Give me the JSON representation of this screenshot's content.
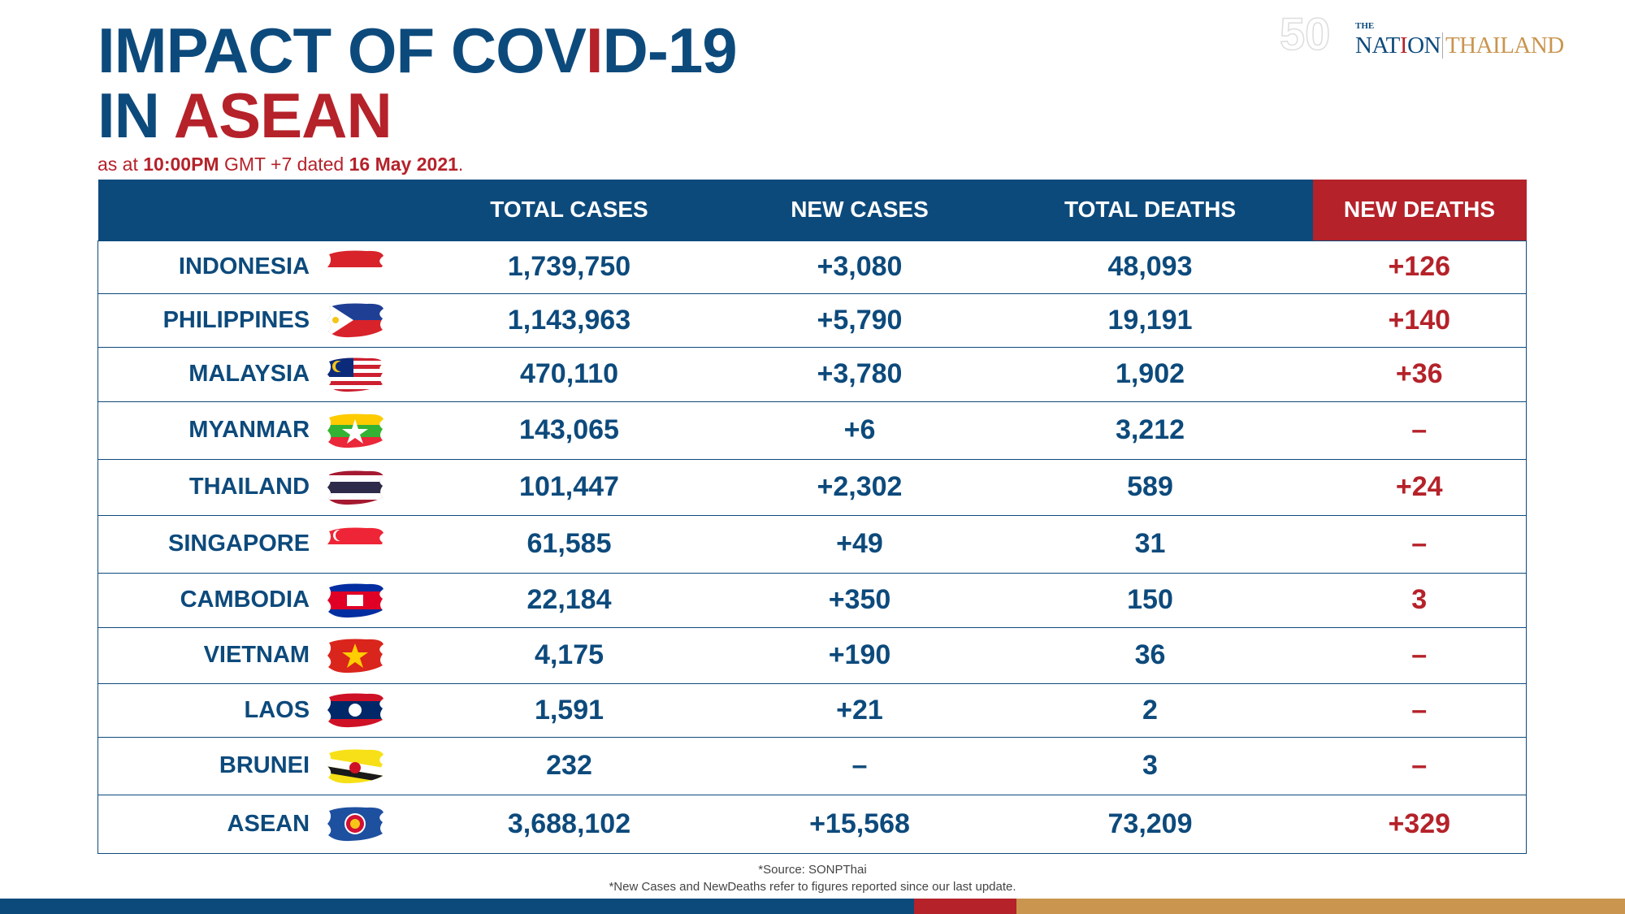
{
  "title": {
    "line1_a": "IMPACT OF COV",
    "line1_b": "I",
    "line1_c": "D-19",
    "line2_a": "IN ",
    "line2_b": "ASEAN"
  },
  "subtitle": {
    "a": "as at ",
    "time": "10:00PM",
    "b": " GMT +7 dated ",
    "date": "16 May 2021",
    "c": "."
  },
  "logo": {
    "the": "THE",
    "nation_a": "NAT",
    "nation_b": "I",
    "nation_c": "ON",
    "thailand": "THAILAND",
    "anniversary": "50"
  },
  "table": {
    "headers": [
      "",
      "TOTAL CASES",
      "NEW CASES",
      "TOTAL DEATHS",
      "NEW DEATHS"
    ],
    "rows": [
      {
        "country": "INDONESIA",
        "flag": "indonesia",
        "total_cases": "1,739,750",
        "new_cases": "+3,080",
        "total_deaths": "48,093",
        "new_deaths": "+126"
      },
      {
        "country": "PHILIPPINES",
        "flag": "philippines",
        "total_cases": "1,143,963",
        "new_cases": "+5,790",
        "total_deaths": "19,191",
        "new_deaths": "+140"
      },
      {
        "country": "MALAYSIA",
        "flag": "malaysia",
        "total_cases": "470,110",
        "new_cases": "+3,780",
        "total_deaths": "1,902",
        "new_deaths": "+36"
      },
      {
        "country": "MYANMAR",
        "flag": "myanmar",
        "total_cases": "143,065",
        "new_cases": "+6",
        "total_deaths": "3,212",
        "new_deaths": "–"
      },
      {
        "country": "THAILAND",
        "flag": "thailand",
        "total_cases": "101,447",
        "new_cases": "+2,302",
        "total_deaths": "589",
        "new_deaths": "+24"
      },
      {
        "country": "SINGAPORE",
        "flag": "singapore",
        "total_cases": "61,585",
        "new_cases": "+49",
        "total_deaths": "31",
        "new_deaths": "–"
      },
      {
        "country": "CAMBODIA",
        "flag": "cambodia",
        "total_cases": "22,184",
        "new_cases": "+350",
        "total_deaths": "150",
        "new_deaths": "3"
      },
      {
        "country": "VIETNAM",
        "flag": "vietnam",
        "total_cases": "4,175",
        "new_cases": "+190",
        "total_deaths": "36",
        "new_deaths": "–"
      },
      {
        "country": "LAOS",
        "flag": "laos",
        "total_cases": "1,591",
        "new_cases": "+21",
        "total_deaths": "2",
        "new_deaths": "–"
      },
      {
        "country": "BRUNEI",
        "flag": "brunei",
        "total_cases": "232",
        "new_cases": "–",
        "total_deaths": "3",
        "new_deaths": "–"
      },
      {
        "country": "ASEAN",
        "flag": "asean",
        "total_cases": "3,688,102",
        "new_cases": "+15,568",
        "total_deaths": "73,209",
        "new_deaths": "+329"
      }
    ]
  },
  "footer": {
    "source": "*Source: SONPThai",
    "note": "*New Cases and NewDeaths refer to figures reported since our last update."
  },
  "colors": {
    "blue": "#0d4a7c",
    "red": "#b5222a",
    "gold": "#c9954f"
  }
}
